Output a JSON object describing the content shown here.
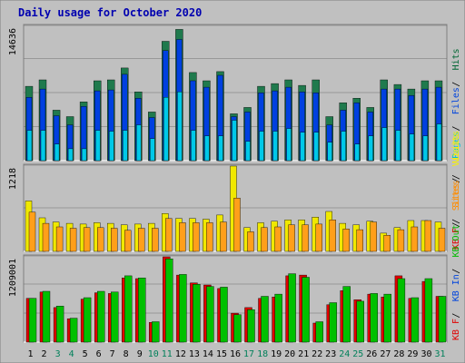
{
  "chart_data": {
    "type": "bar",
    "title": "Daily usage for October 2020",
    "days": [
      "1",
      "2",
      "3",
      "4",
      "5",
      "6",
      "7",
      "8",
      "9",
      "10",
      "11",
      "12",
      "13",
      "14",
      "15",
      "16",
      "17",
      "18",
      "19",
      "20",
      "21",
      "22",
      "23",
      "24",
      "25",
      "26",
      "27",
      "28",
      "29",
      "30",
      "31"
    ],
    "weekend_days": [
      "3",
      "4",
      "10",
      "11",
      "17",
      "18",
      "24",
      "25",
      "31"
    ],
    "panels": [
      {
        "id": "top",
        "max_label": "14636",
        "ylim": [
          0,
          14636
        ],
        "grid_lines": 3,
        "legend": [
          {
            "label": "Pages",
            "color": "#00c0e0"
          },
          {
            "label": "Files",
            "color": "#0044dd"
          },
          {
            "label": "Hits",
            "color": "#006633"
          }
        ],
        "series": [
          {
            "name": "Hits",
            "color": "#1f7a4d",
            "values": [
              8100,
              8800,
              5500,
              4800,
              6400,
              8700,
              8800,
              10100,
              7500,
              5300,
              13000,
              14300,
              9600,
              8700,
              9700,
              5100,
              5800,
              8100,
              8400,
              8800,
              8200,
              8800,
              4800,
              6300,
              6800,
              5800,
              8800,
              8300,
              7800,
              8700,
              8700
            ]
          },
          {
            "name": "Files",
            "color": "#0040e0",
            "values": [
              6900,
              7800,
              4900,
              3900,
              5900,
              7600,
              7700,
              9400,
              6800,
              4700,
              12000,
              13200,
              8700,
              8000,
              9300,
              4800,
              5300,
              7400,
              7600,
              8000,
              7500,
              7400,
              3900,
              5500,
              6300,
              5300,
              7800,
              7800,
              7100,
              7800,
              8000
            ]
          },
          {
            "name": "Pages",
            "color": "#00c8e8",
            "values": [
              3300,
              3300,
              1800,
              1300,
              1300,
              3300,
              3200,
              3300,
              3900,
              2400,
              6900,
              7500,
              3300,
              2700,
              2700,
              4400,
              2100,
              3200,
              3200,
              3500,
              3100,
              3100,
              2000,
              3200,
              1800,
              2700,
              3600,
              3300,
              2900,
              2700,
              4000
            ]
          }
        ]
      },
      {
        "id": "middle",
        "max_label": "1218",
        "ylim": [
          0,
          1218
        ],
        "grid_lines": 1,
        "legend": [
          {
            "label": "KB F",
            "color": "#e00000"
          },
          {
            "label": "Sites",
            "color": "#ff8c00"
          },
          {
            "label": "Visits",
            "color": "#f8f000"
          }
        ],
        "series": [
          {
            "name": "Visits",
            "color": "#f0e800",
            "values": [
              720,
              480,
              420,
              400,
              390,
              410,
              400,
              380,
              390,
              400,
              540,
              470,
              470,
              460,
              520,
              1218,
              340,
              410,
              430,
              450,
              450,
              490,
              570,
              400,
              380,
              430,
              260,
              340,
              440,
              440,
              420
            ]
          },
          {
            "name": "Sites",
            "color": "#ff9f1a",
            "values": [
              560,
              400,
              350,
              330,
              340,
              340,
              330,
              300,
              330,
              330,
              470,
              410,
              410,
              410,
              420,
              760,
              280,
              340,
              350,
              380,
              380,
              390,
              450,
              320,
              310,
              420,
              230,
              310,
              350,
              440,
              330
            ]
          }
        ]
      },
      {
        "id": "bottom",
        "max_label": "1209001",
        "ylim": [
          0,
          1209001
        ],
        "grid_lines": 2,
        "legend": [
          {
            "label": "KB F",
            "color": "#e00000"
          },
          {
            "label": "KB In",
            "color": "#0044dd"
          },
          {
            "label": "KB Out",
            "color": "#00bb00"
          },
          {
            "label": "Sites",
            "color": "#ff8c00"
          },
          {
            "label": "Visits",
            "color": "#f8f000"
          }
        ],
        "series": [
          {
            "name": "KB F",
            "color": "#e00000",
            "values": [
              620000,
              710000,
              490000,
              330000,
              610000,
              700000,
              690000,
              910000,
              900000,
              280000,
              1209000,
              950000,
              840000,
              810000,
              760000,
              410000,
              490000,
              620000,
              640000,
              940000,
              950000,
              270000,
              530000,
              730000,
              600000,
              680000,
              640000,
              940000,
              620000,
              860000,
              650000
            ]
          },
          {
            "name": "KB Out",
            "color": "#00c000",
            "values": [
              620000,
              720000,
              510000,
              340000,
              630000,
              720000,
              710000,
              940000,
              910000,
              290000,
              1180000,
              960000,
              820000,
              790000,
              780000,
              390000,
              460000,
              650000,
              680000,
              970000,
              920000,
              290000,
              560000,
              790000,
              580000,
              690000,
              680000,
              900000,
              630000,
              900000,
              650000
            ]
          }
        ]
      }
    ]
  },
  "colors": {
    "frame_bg": "#c0c0c0",
    "plot_bg": "#c0c0c0",
    "title": "#0000b0",
    "day_label": "#000000",
    "weekend_label": "#00805a",
    "max_label": "#000000",
    "divider": "#ffffff"
  }
}
